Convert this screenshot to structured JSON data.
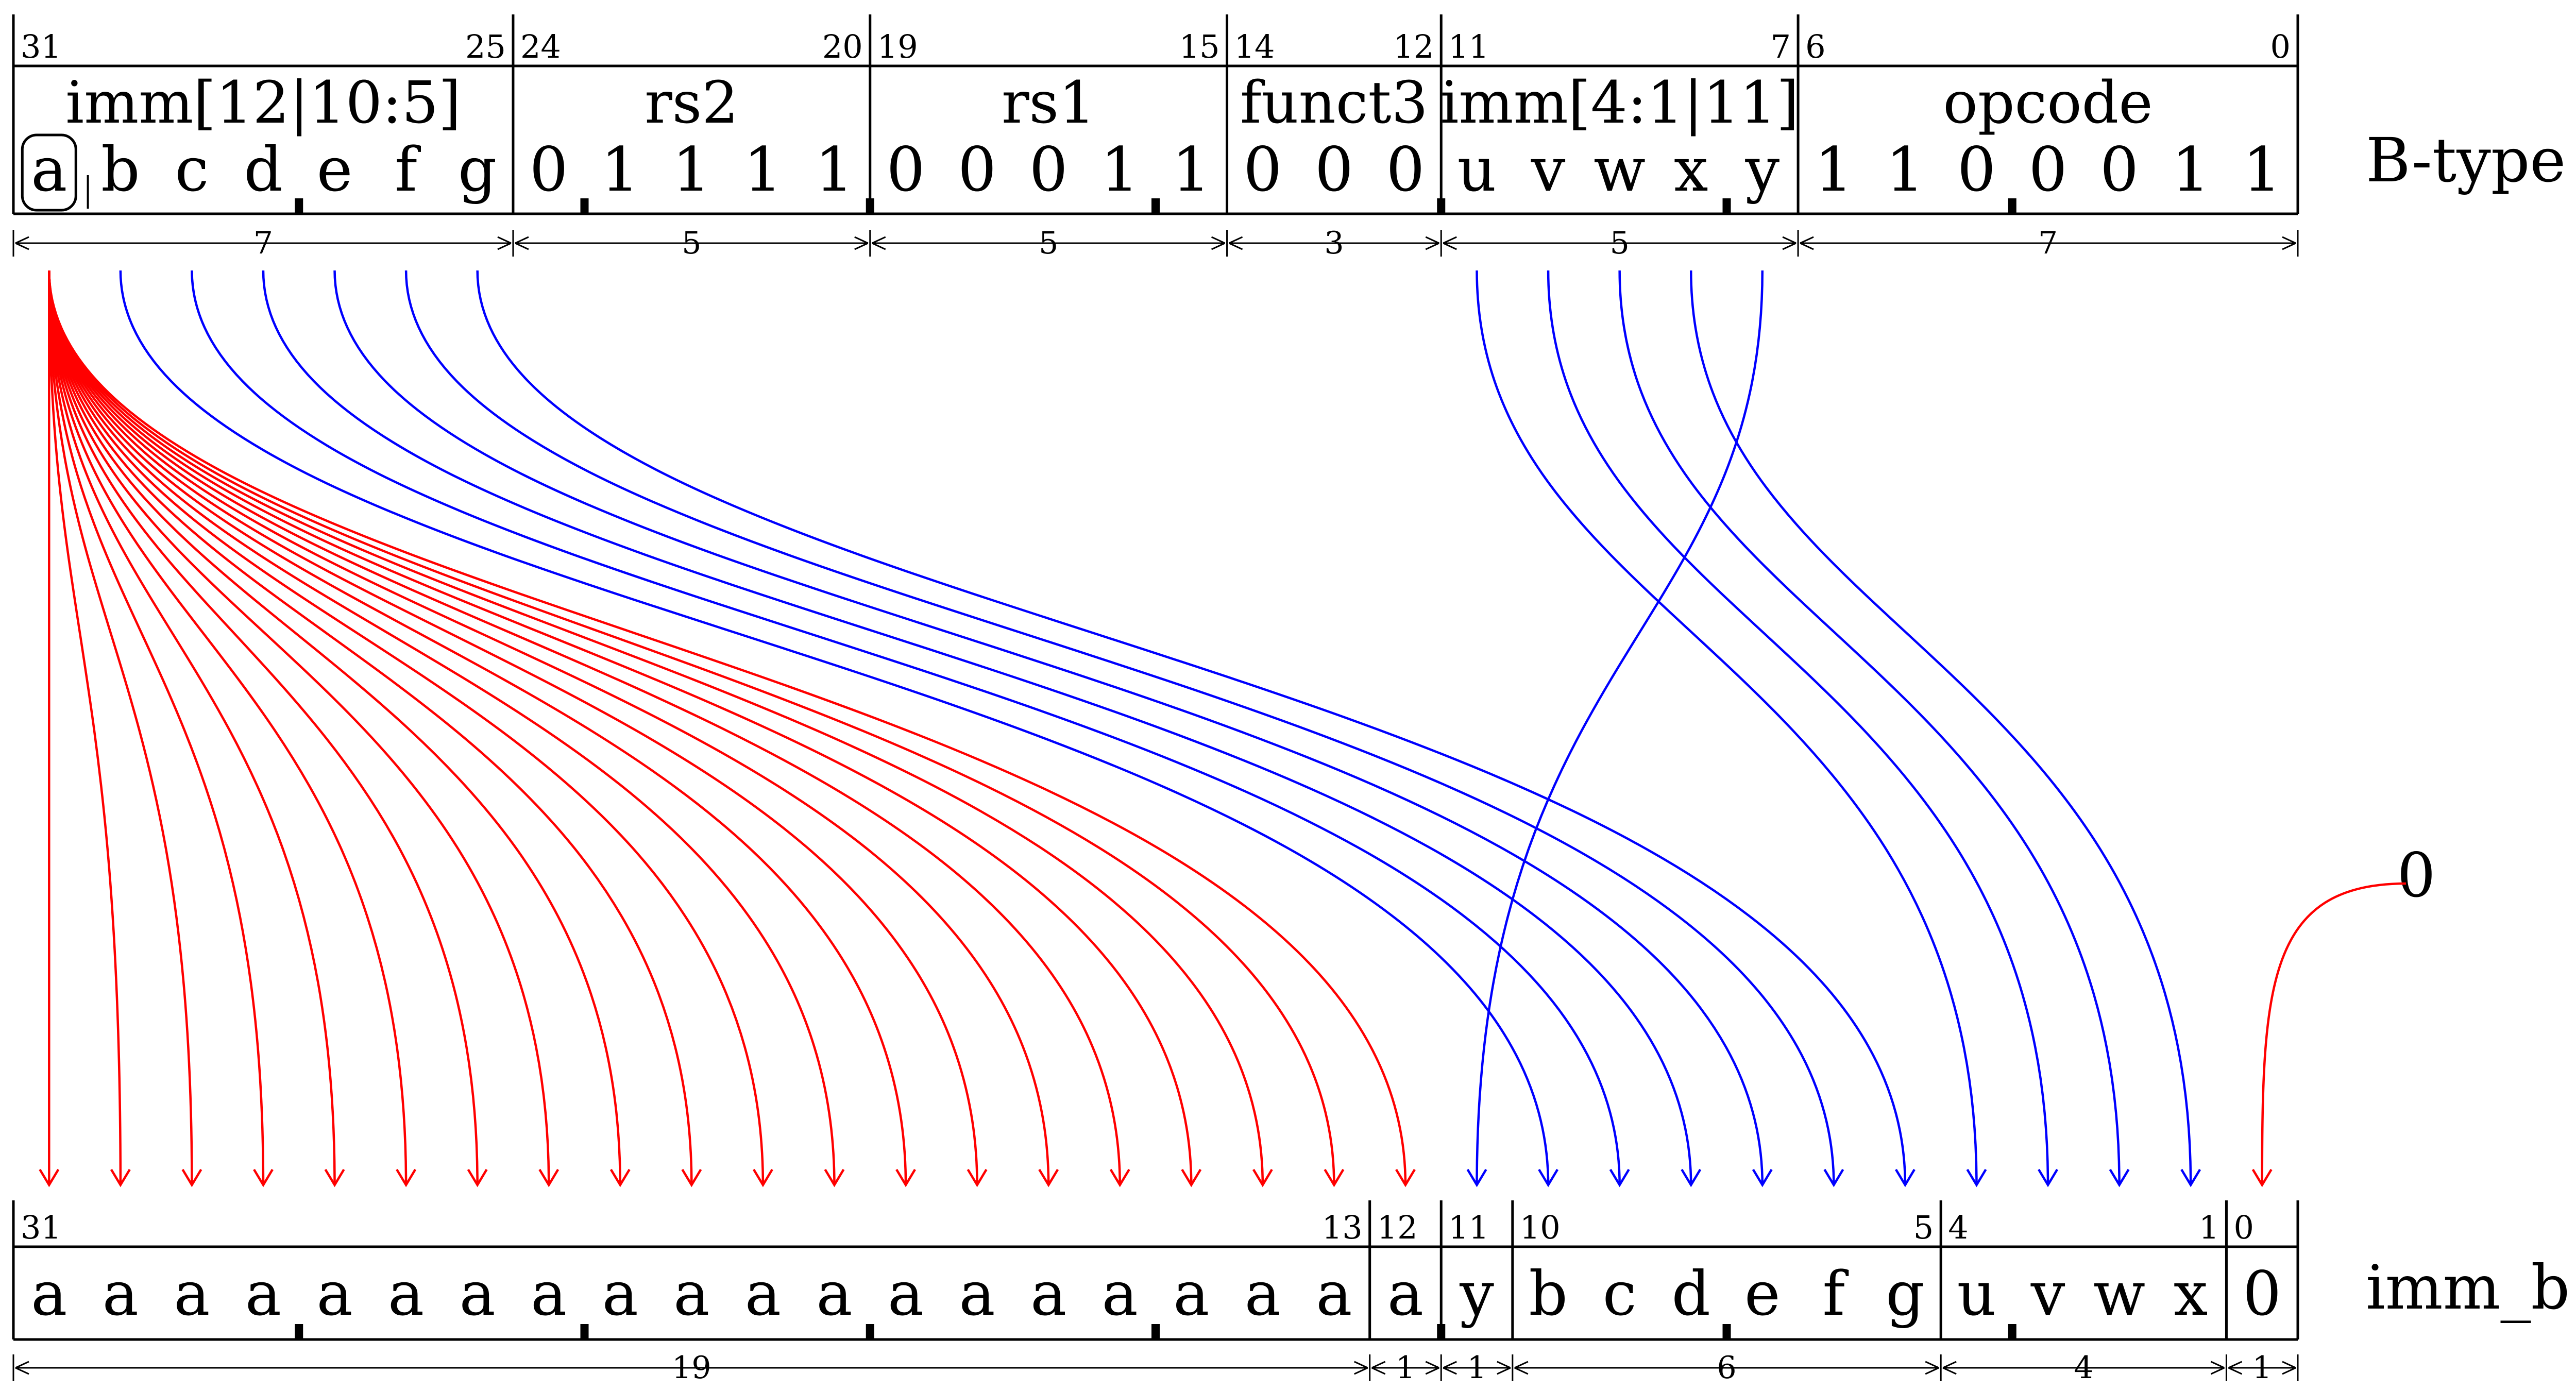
{
  "diagram": {
    "top_label": "B-type",
    "bottom_label": "imm_b",
    "zero_source": "0",
    "colors": {
      "sign_extend": "#ff0000",
      "move": "#0000ff",
      "frame": "#000000"
    }
  },
  "top": {
    "fields": [
      {
        "name": "imm[12|10:5]",
        "hi": "31",
        "lo": "25",
        "width": "7"
      },
      {
        "name": "rs2",
        "hi": "24",
        "lo": "20",
        "width": "5"
      },
      {
        "name": "rs1",
        "hi": "19",
        "lo": "15",
        "width": "5"
      },
      {
        "name": "funct3",
        "hi": "14",
        "lo": "12",
        "width": "3"
      },
      {
        "name": "imm[4:1|11]",
        "hi": "11",
        "lo": "7",
        "width": "5"
      },
      {
        "name": "opcode",
        "hi": "6",
        "lo": "0",
        "width": "7"
      }
    ],
    "bits": [
      "a",
      "b",
      "c",
      "d",
      "e",
      "f",
      "g",
      "0",
      "1",
      "1",
      "1",
      "1",
      "0",
      "0",
      "0",
      "1",
      "1",
      "0",
      "0",
      "0",
      "u",
      "v",
      "w",
      "x",
      "y",
      "1",
      "1",
      "0",
      "0",
      "0",
      "1",
      "1"
    ]
  },
  "bottom": {
    "fields": [
      {
        "hi": "31",
        "lo": "13",
        "width": "19"
      },
      {
        "hi": "12",
        "lo": "",
        "width": "1"
      },
      {
        "hi": "11",
        "lo": "",
        "width": "1"
      },
      {
        "hi": "10",
        "lo": "5",
        "width": "6"
      },
      {
        "hi": "4",
        "lo": "1",
        "width": "4"
      },
      {
        "hi": "0",
        "lo": "",
        "width": "1"
      }
    ],
    "bits": [
      "a",
      "a",
      "a",
      "a",
      "a",
      "a",
      "a",
      "a",
      "a",
      "a",
      "a",
      "a",
      "a",
      "a",
      "a",
      "a",
      "a",
      "a",
      "a",
      "a",
      "y",
      "b",
      "c",
      "d",
      "e",
      "f",
      "g",
      "u",
      "v",
      "w",
      "x",
      "0"
    ]
  }
}
